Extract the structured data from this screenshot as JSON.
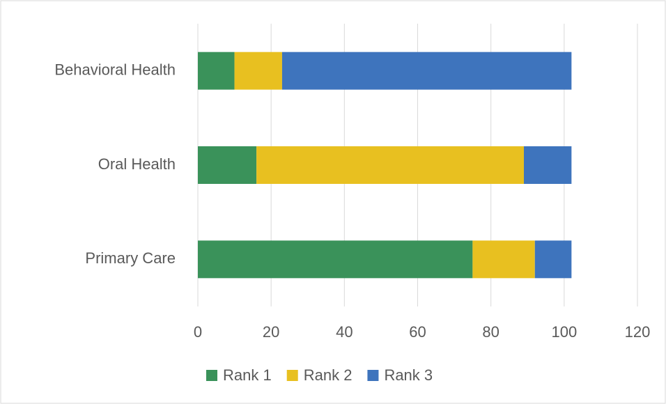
{
  "chart_data": {
    "type": "bar",
    "orientation": "horizontal",
    "stacked": true,
    "categories": [
      "Primary Care",
      "Oral Health",
      "Behavioral Health"
    ],
    "series": [
      {
        "name": "Rank 1",
        "color": "#3a925a",
        "values": [
          75,
          16,
          10
        ]
      },
      {
        "name": "Rank 2",
        "color": "#e8c020",
        "values": [
          17,
          73,
          13
        ]
      },
      {
        "name": "Rank 3",
        "color": "#3e74bd",
        "values": [
          10,
          13,
          79
        ]
      }
    ],
    "xlim": [
      0,
      120
    ],
    "xticks": [
      0,
      20,
      40,
      60,
      80,
      100,
      120
    ],
    "grid": true,
    "legend": "bottom"
  }
}
